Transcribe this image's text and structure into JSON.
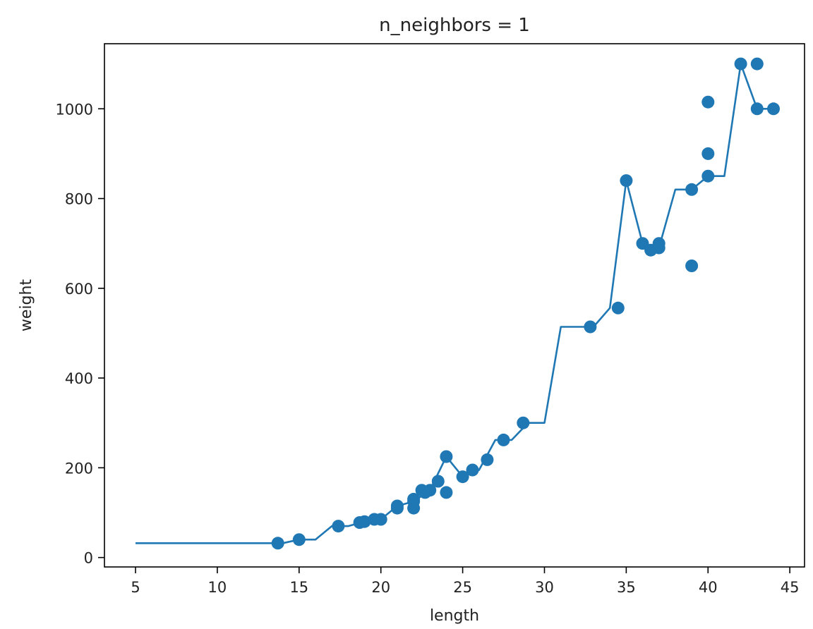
{
  "chart_data": {
    "type": "scatter",
    "title": "n_neighbors = 1",
    "xlabel": "length",
    "ylabel": "weight",
    "xlim": [
      3.1,
      45.9
    ],
    "ylim": [
      -21,
      1145
    ],
    "xticks": [
      5,
      10,
      15,
      20,
      25,
      30,
      35,
      40,
      45
    ],
    "yticks": [
      0,
      200,
      400,
      600,
      800,
      1000
    ],
    "grid": false,
    "color": "#1f77b4",
    "scatter_points": [
      [
        13.7,
        32
      ],
      [
        15.0,
        40
      ],
      [
        17.4,
        70
      ],
      [
        18.7,
        78
      ],
      [
        19.0,
        80
      ],
      [
        19.6,
        85
      ],
      [
        20.0,
        85
      ],
      [
        21.0,
        110
      ],
      [
        21.0,
        115
      ],
      [
        22.0,
        110
      ],
      [
        22.0,
        130
      ],
      [
        22.0,
        125
      ],
      [
        22.5,
        150
      ],
      [
        22.7,
        145
      ],
      [
        23.0,
        150
      ],
      [
        23.5,
        170
      ],
      [
        24.0,
        225
      ],
      [
        24.0,
        145
      ],
      [
        25.0,
        180
      ],
      [
        25.6,
        195
      ],
      [
        26.5,
        218
      ],
      [
        27.5,
        262
      ],
      [
        28.7,
        300
      ],
      [
        32.8,
        514
      ],
      [
        34.5,
        556
      ],
      [
        35.0,
        840
      ],
      [
        36.0,
        700
      ],
      [
        36.5,
        685
      ],
      [
        37.0,
        700
      ],
      [
        37.0,
        690
      ],
      [
        39.0,
        820
      ],
      [
        39.0,
        650
      ],
      [
        40.0,
        850
      ],
      [
        40.0,
        900
      ],
      [
        40.0,
        1015
      ],
      [
        42.0,
        1100
      ],
      [
        43.0,
        1100
      ],
      [
        43.0,
        1000
      ],
      [
        44.0,
        1000
      ]
    ],
    "line_points": [
      [
        5,
        32
      ],
      [
        14,
        32
      ],
      [
        15,
        40
      ],
      [
        16,
        40
      ],
      [
        17,
        70
      ],
      [
        18,
        70
      ],
      [
        19,
        80
      ],
      [
        20,
        85
      ],
      [
        21,
        115
      ],
      [
        22,
        125
      ],
      [
        23,
        150
      ],
      [
        24,
        225
      ],
      [
        25,
        180
      ],
      [
        26,
        195
      ],
      [
        27,
        262
      ],
      [
        28,
        262
      ],
      [
        29,
        300
      ],
      [
        30,
        300
      ],
      [
        31,
        514
      ],
      [
        32,
        514
      ],
      [
        33,
        514
      ],
      [
        34,
        556
      ],
      [
        35,
        840
      ],
      [
        36,
        700
      ],
      [
        37,
        690
      ],
      [
        38,
        820
      ],
      [
        39,
        820
      ],
      [
        40,
        850
      ],
      [
        41,
        850
      ],
      [
        42,
        1100
      ],
      [
        43,
        1000
      ],
      [
        44,
        1000
      ]
    ]
  }
}
